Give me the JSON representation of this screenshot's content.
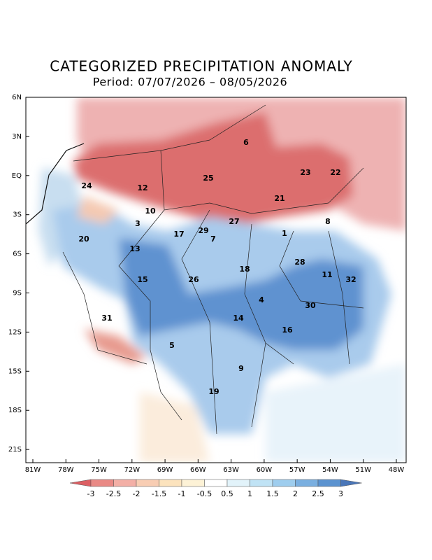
{
  "header": {
    "title": "CATEGORIZED PRECIPITATION ANOMALY",
    "period": "Period: 07/07/2026 – 08/05/2026"
  },
  "map": {
    "lon_labels": [
      "81W",
      "78W",
      "75W",
      "72W",
      "69W",
      "66W",
      "63W",
      "60W",
      "57W",
      "54W",
      "51W",
      "48W"
    ],
    "lat_labels": [
      "6N",
      "3N",
      "EQ",
      "3S",
      "6S",
      "9S",
      "12S",
      "15S",
      "18S",
      "21S"
    ],
    "basins": [
      6,
      12,
      24,
      25,
      23,
      22,
      21,
      10,
      3,
      17,
      29,
      27,
      7,
      1,
      8,
      20,
      13,
      18,
      28,
      11,
      32,
      15,
      26,
      4,
      30,
      31,
      14,
      16,
      5,
      9,
      19
    ]
  },
  "legend": {
    "labels": [
      "-3",
      "-2.5",
      "-2",
      "-1.5",
      "-1",
      "-0.5",
      "0.5",
      "1",
      "1.5",
      "2",
      "2.5",
      "3"
    ],
    "colors": [
      "#dc5f63",
      "#e98985",
      "#f3afa6",
      "#f8cdb3",
      "#fce3bd",
      "#fdf2d6",
      "#ffffff",
      "#e2f3fa",
      "#c0e3f5",
      "#9ecdee",
      "#7aafe0",
      "#5b93d0",
      "#4a76b8"
    ]
  }
}
